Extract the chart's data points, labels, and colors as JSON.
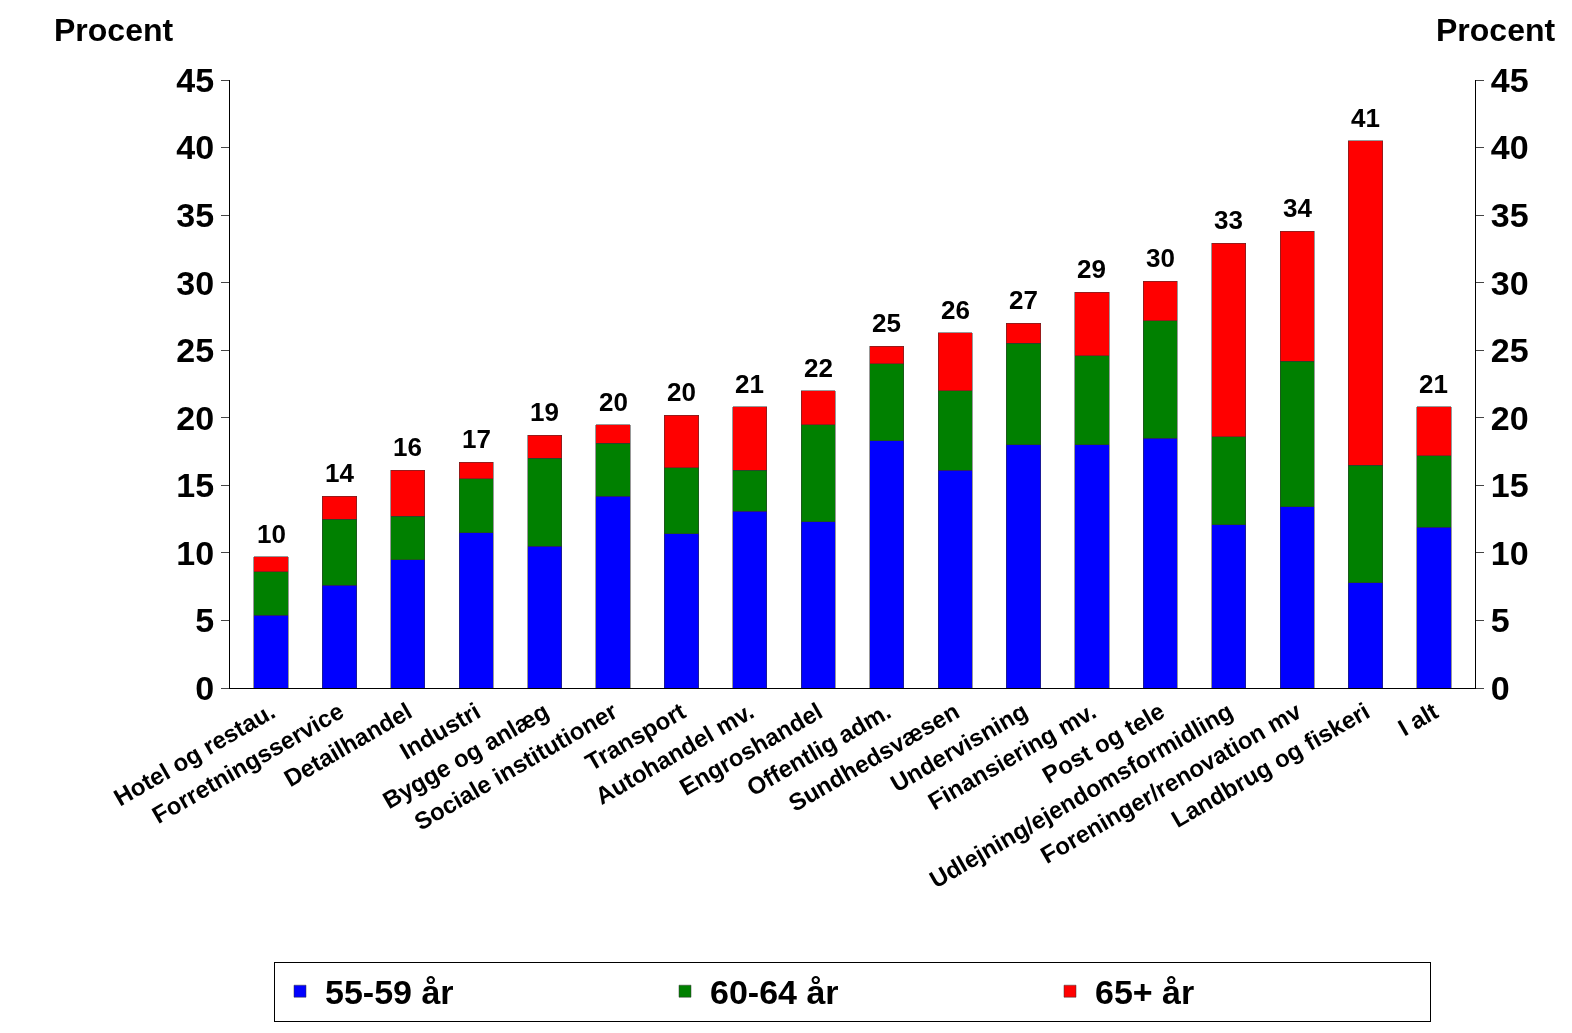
{
  "chart_data": {
    "type": "bar",
    "stacked": true,
    "ylabel": "Procent",
    "y2label": "Procent",
    "categories": [
      "Hotel og restau.",
      "Forretningsservice",
      "Detailhandel",
      "Industri",
      "Bygge og anlæg",
      "Sociale institutioner",
      "Transport",
      "Autohandel mv.",
      "Engroshandel",
      "Offentlig adm.",
      "Sundhedsvæsen",
      "Undervisning",
      "Finansiering mv.",
      "Post og tele",
      "Udlejning/ejendomsformidling",
      "Foreninger/renovation mv",
      "Landbrug og fiskeri",
      "I alt"
    ],
    "series": [
      {
        "name": "55-59 år",
        "color": "#0000ff",
        "values": [
          5.4,
          7.6,
          9.5,
          11.5,
          10.5,
          14.2,
          11.4,
          13.1,
          12.3,
          18.3,
          16.1,
          18.0,
          18.0,
          18.5,
          12.1,
          13.4,
          7.8,
          11.9
        ]
      },
      {
        "name": "60-64 år",
        "color": "#008000",
        "values": [
          3.2,
          4.9,
          3.2,
          4.0,
          6.5,
          3.9,
          4.9,
          3.0,
          7.2,
          5.7,
          5.9,
          7.5,
          6.6,
          8.7,
          6.5,
          10.8,
          8.7,
          5.3
        ]
      },
      {
        "name": "65+ år",
        "color": "#ff0000",
        "values": [
          1.1,
          1.7,
          3.4,
          1.2,
          1.7,
          1.4,
          3.9,
          4.7,
          2.5,
          1.3,
          4.3,
          1.5,
          4.7,
          2.9,
          14.3,
          9.6,
          24.0,
          3.6
        ]
      }
    ],
    "totals": [
      "10",
      "14",
      "16",
      "17",
      "19",
      "20",
      "20",
      "21",
      "22",
      "25",
      "26",
      "27",
      "29",
      "30",
      "33",
      "34",
      "41",
      "21"
    ],
    "ylim": [
      0,
      45
    ],
    "yticks": [
      0,
      5,
      10,
      15,
      20,
      25,
      30,
      35,
      40,
      45
    ],
    "y2lim": [
      0,
      45
    ],
    "y2ticks": [
      0,
      5,
      10,
      15,
      20,
      25,
      30,
      35,
      40,
      45
    ],
    "grid": false,
    "legend": "bottom"
  }
}
